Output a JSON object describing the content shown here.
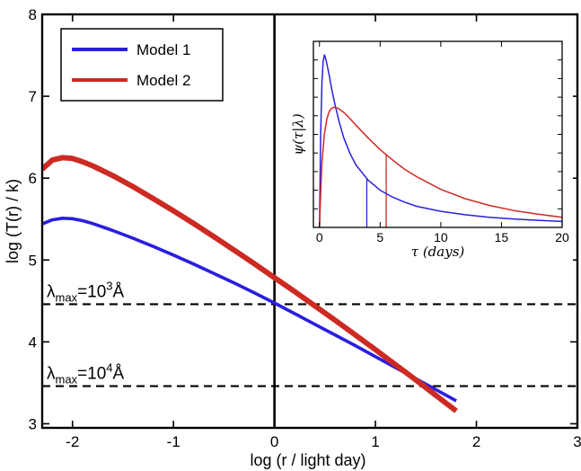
{
  "chart_data": [
    {
      "type": "line",
      "title": "",
      "xlabel": "log (r / light day)",
      "ylabel": "log (T(r) / k)",
      "xlim": [
        -2.3,
        3
      ],
      "ylim": [
        2.95,
        8
      ],
      "xticks": [
        -2,
        -1,
        0,
        1,
        2,
        3
      ],
      "xtick_labels": [
        "-2",
        "-1",
        "0",
        "1",
        "2",
        "3"
      ],
      "yticks": [
        3,
        4,
        5,
        6,
        7,
        8
      ],
      "ytick_labels": [
        "3",
        "4",
        "5",
        "6",
        "7",
        "8"
      ],
      "grid": false,
      "legend": {
        "position": "top-left",
        "entries": [
          "Model 1",
          "Model 2"
        ]
      },
      "series": [
        {
          "name": "Model 1",
          "color": "#2a1ee0",
          "x": [
            -2.3,
            -2.2,
            -2.1,
            -2.0,
            -1.9,
            -1.8,
            -1.6,
            -1.4,
            -1.2,
            -1.0,
            -0.8,
            -0.6,
            -0.4,
            -0.2,
            0.0,
            0.2,
            0.4,
            0.6,
            0.8,
            1.0,
            1.2,
            1.4,
            1.6,
            1.8
          ],
          "y": [
            5.44,
            5.49,
            5.51,
            5.505,
            5.48,
            5.445,
            5.36,
            5.265,
            5.165,
            5.06,
            4.95,
            4.835,
            4.72,
            4.6,
            4.475,
            4.345,
            4.215,
            4.085,
            3.955,
            3.82,
            3.685,
            3.55,
            3.415,
            3.28
          ]
        },
        {
          "name": "Model 2",
          "color": "#cc2a22",
          "x": [
            -2.3,
            -2.2,
            -2.1,
            -2.0,
            -1.9,
            -1.8,
            -1.6,
            -1.4,
            -1.2,
            -1.0,
            -0.8,
            -0.6,
            -0.4,
            -0.2,
            0.0,
            0.2,
            0.4,
            0.6,
            0.8,
            1.0,
            1.2,
            1.4,
            1.6,
            1.8
          ],
          "y": [
            6.11,
            6.22,
            6.25,
            6.24,
            6.2,
            6.15,
            6.03,
            5.895,
            5.75,
            5.6,
            5.445,
            5.285,
            5.12,
            4.955,
            4.785,
            4.615,
            4.44,
            4.265,
            4.085,
            3.905,
            3.72,
            3.535,
            3.345,
            3.155
          ]
        }
      ],
      "vertical_line_x": 0,
      "reference_lines": [
        {
          "y": 4.46,
          "style": "dashed",
          "label_prefix": "λ",
          "label_sub": "max",
          "label_base": "=10",
          "label_exp": "3",
          "label_unit": "Å"
        },
        {
          "y": 3.46,
          "style": "dashed",
          "label_prefix": "λ",
          "label_sub": "max",
          "label_base": "=10",
          "label_exp": "4",
          "label_unit": "Å"
        }
      ]
    },
    {
      "type": "line",
      "title": "",
      "xlabel": "τ  (days)",
      "ylabel": "ψ(τ|λ)",
      "xlim": [
        -0.5,
        20
      ],
      "ylim": [
        0,
        1.1
      ],
      "xticks": [
        0,
        5,
        10,
        15,
        20
      ],
      "xtick_labels": [
        "0",
        "5",
        "10",
        "15",
        "20"
      ],
      "grid": false,
      "series": [
        {
          "name": "Model 1",
          "color": "#2a1ee0",
          "x": [
            0.0,
            0.1,
            0.2,
            0.3,
            0.4,
            0.5,
            0.6,
            0.8,
            1.0,
            1.3,
            1.6,
            2.0,
            2.5,
            3.0,
            4.0,
            5.0,
            6.0,
            7.0,
            8.0,
            10.0,
            12.0,
            14.0,
            16.0,
            18.0,
            20.0
          ],
          "y": [
            0.0,
            0.55,
            0.85,
            0.98,
            1.02,
            1.0,
            0.97,
            0.9,
            0.82,
            0.72,
            0.63,
            0.53,
            0.44,
            0.37,
            0.28,
            0.22,
            0.18,
            0.15,
            0.125,
            0.095,
            0.075,
            0.06,
            0.05,
            0.042,
            0.035
          ]
        },
        {
          "name": "Model 2",
          "color": "#cc2a22",
          "x": [
            0.0,
            0.1,
            0.2,
            0.4,
            0.6,
            0.8,
            1.0,
            1.2,
            1.5,
            2.0,
            2.5,
            3.0,
            4.0,
            5.0,
            6.0,
            7.0,
            8.0,
            10.0,
            12.0,
            14.0,
            16.0,
            18.0,
            20.0
          ],
          "y": [
            0.0,
            0.2,
            0.38,
            0.55,
            0.64,
            0.685,
            0.705,
            0.71,
            0.705,
            0.68,
            0.645,
            0.605,
            0.53,
            0.46,
            0.4,
            0.345,
            0.3,
            0.225,
            0.17,
            0.13,
            0.1,
            0.078,
            0.06
          ]
        }
      ],
      "markers": [
        {
          "x": 3.9,
          "color": "#2a1ee0"
        },
        {
          "x": 5.5,
          "color": "#cc2a22"
        }
      ]
    }
  ]
}
